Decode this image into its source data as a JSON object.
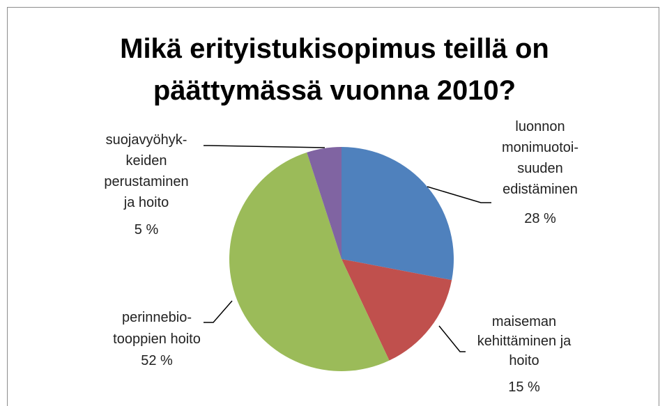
{
  "chart_data": {
    "type": "pie",
    "title": "Mikä erityistukisopimus teillä on päättymässä vuonna 2010?",
    "categories": [
      [
        "luonnon",
        "monimuotoi-",
        "suuden",
        "edistäminen"
      ],
      [
        "maiseman",
        "kehittäminen ja",
        "hoito"
      ],
      [
        "perinnebio-",
        "tooppien hoito"
      ],
      [
        "suojavyöhyk-",
        "keiden",
        "perustaminen",
        "ja hoito"
      ]
    ],
    "values": [
      28,
      15,
      52,
      5
    ],
    "value_labels": [
      "28 %",
      "15 %",
      "52 %",
      "5 %"
    ],
    "colors": [
      "#4f81bd",
      "#c0504d",
      "#9bbb59",
      "#8064a2"
    ]
  }
}
